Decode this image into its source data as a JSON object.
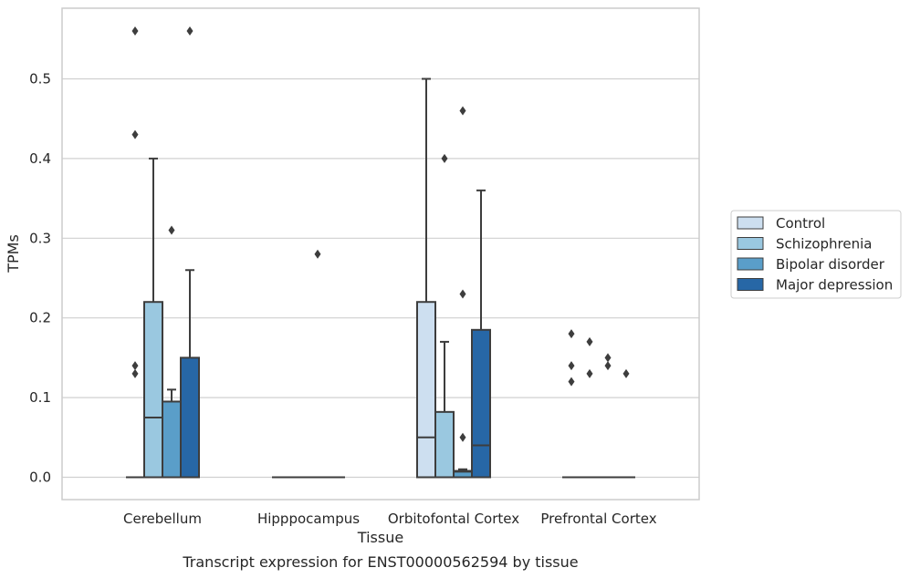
{
  "chart_data": {
    "type": "box",
    "xlabel": "Tissue",
    "ylabel": "TPMs",
    "caption": "Transcript expression for ENST00000562594 by tissue",
    "ylim": [
      -0.028,
      0.588
    ],
    "yticks": [
      0.0,
      0.1,
      0.2,
      0.3,
      0.4,
      0.5
    ],
    "ytick_labels": [
      "0.0",
      "0.1",
      "0.2",
      "0.3",
      "0.4",
      "0.5"
    ],
    "categories": [
      "Cerebellum",
      "Hipppocampus",
      "Orbitofontal Cortex",
      "Prefrontal Cortex"
    ],
    "grid": "horizontal",
    "legend_position": "right",
    "series": [
      {
        "name": "Control",
        "color": "#cddff0",
        "boxes": [
          {
            "q1": 0,
            "median": 0,
            "q3": 0,
            "whisker_low": 0,
            "whisker_high": 0,
            "outliers": [
              0.56,
              0.43,
              0.14,
              0.13
            ]
          },
          {
            "q1": 0,
            "median": 0,
            "q3": 0,
            "whisker_low": 0,
            "whisker_high": 0,
            "outliers": []
          },
          {
            "q1": 0,
            "median": 0.05,
            "q3": 0.22,
            "whisker_low": 0,
            "whisker_high": 0.5,
            "outliers": []
          },
          {
            "q1": 0,
            "median": 0,
            "q3": 0,
            "whisker_low": 0,
            "whisker_high": 0,
            "outliers": [
              0.18,
              0.14,
              0.12
            ]
          }
        ]
      },
      {
        "name": "Schizophrenia",
        "color": "#9ac8e0",
        "boxes": [
          {
            "q1": 0,
            "median": 0.075,
            "q3": 0.22,
            "whisker_low": 0,
            "whisker_high": 0.4,
            "outliers": []
          },
          {
            "q1": 0,
            "median": 0,
            "q3": 0,
            "whisker_low": 0,
            "whisker_high": 0,
            "outliers": []
          },
          {
            "q1": 0,
            "median": 0,
            "q3": 0.082,
            "whisker_low": 0,
            "whisker_high": 0.17,
            "outliers": [
              0.4
            ]
          },
          {
            "q1": 0,
            "median": 0,
            "q3": 0,
            "whisker_low": 0,
            "whisker_high": 0,
            "outliers": [
              0.17,
              0.13
            ]
          }
        ]
      },
      {
        "name": "Bipolar disorder",
        "color": "#5a9ec9",
        "boxes": [
          {
            "q1": 0,
            "median": 0,
            "q3": 0.095,
            "whisker_low": 0,
            "whisker_high": 0.11,
            "outliers": [
              0.31
            ]
          },
          {
            "q1": 0,
            "median": 0,
            "q3": 0,
            "whisker_low": 0,
            "whisker_high": 0,
            "outliers": [
              0.28
            ]
          },
          {
            "q1": 0,
            "median": 0.007,
            "q3": 0.008,
            "whisker_low": 0,
            "whisker_high": 0.01,
            "outliers": [
              0.46,
              0.23,
              0.05
            ]
          },
          {
            "q1": 0,
            "median": 0,
            "q3": 0,
            "whisker_low": 0,
            "whisker_high": 0,
            "outliers": [
              0.15,
              0.14
            ]
          }
        ]
      },
      {
        "name": "Major depression",
        "color": "#2767a6",
        "boxes": [
          {
            "q1": 0,
            "median": 0,
            "q3": 0.15,
            "whisker_low": 0,
            "whisker_high": 0.26,
            "outliers": [
              0.56
            ]
          },
          {
            "q1": 0,
            "median": 0,
            "q3": 0,
            "whisker_low": 0,
            "whisker_high": 0,
            "outliers": []
          },
          {
            "q1": 0,
            "median": 0.04,
            "q3": 0.185,
            "whisker_low": 0,
            "whisker_high": 0.36,
            "outliers": []
          },
          {
            "q1": 0,
            "median": 0,
            "q3": 0,
            "whisker_low": 0,
            "whisker_high": 0,
            "outliers": [
              0.13
            ]
          }
        ]
      }
    ]
  }
}
